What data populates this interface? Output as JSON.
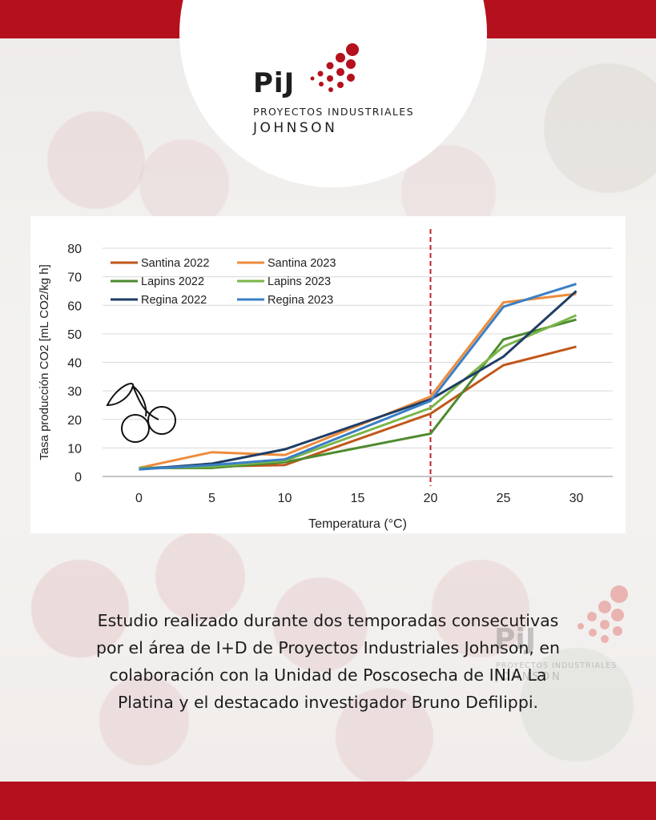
{
  "brand": {
    "mark": "PiJ",
    "line1": "PROYECTOS INDUSTRIALES",
    "line2": "JOHNSON",
    "accent": "#b5101d"
  },
  "watermark": {
    "mark": "PiJ",
    "line1": "PROYECTOS INDUSTRIALES",
    "line2": "JOHNSON"
  },
  "caption": [
    "Estudio realizado durante dos temporadas consecutivas",
    "por el área de I+D de Proyectos Industriales Johnson, en",
    "colaboración con la Unidad de Poscosecha de INIA La",
    "Platina y el destacado investigador Bruno Defilippi."
  ],
  "chart_data": {
    "type": "line",
    "title": "",
    "xlabel": "Temperatura (°C)",
    "ylabel": "Tasa producción CO2 [mL CO2/kg h]",
    "x": [
      0,
      5,
      10,
      20,
      25,
      30
    ],
    "xticks": [
      0,
      5,
      10,
      15,
      20,
      25,
      30
    ],
    "yticks": [
      0,
      10,
      20,
      30,
      40,
      50,
      60,
      70,
      80
    ],
    "xlim": [
      -2.5,
      32.5
    ],
    "ylim": [
      0,
      80
    ],
    "grid": true,
    "legend_position": "top-left",
    "reference_line": {
      "x": 20,
      "color": "#c0202a",
      "style": "dashed"
    },
    "series": [
      {
        "name": "Santina 2022",
        "color": "#c0561a",
        "values": [
          3,
          3.5,
          4,
          22,
          39,
          45.5
        ]
      },
      {
        "name": "Santina 2023",
        "color": "#ed8b3c",
        "values": [
          3,
          8.5,
          7.5,
          28,
          61,
          64
        ]
      },
      {
        "name": "Lapins 2022",
        "color": "#4e8a2e",
        "values": [
          3,
          3,
          5,
          15,
          48,
          55
        ]
      },
      {
        "name": "Lapins 2023",
        "color": "#7ab648",
        "values": [
          3,
          3.5,
          5.5,
          24,
          45.5,
          56.5
        ]
      },
      {
        "name": "Regina 2022",
        "color": "#1f3d66",
        "values": [
          2.5,
          4.5,
          9.5,
          27,
          42,
          65
        ]
      },
      {
        "name": "Regina 2023",
        "color": "#3a7fc4",
        "values": [
          2.5,
          4,
          6,
          26.5,
          59.5,
          67.5
        ]
      }
    ]
  }
}
